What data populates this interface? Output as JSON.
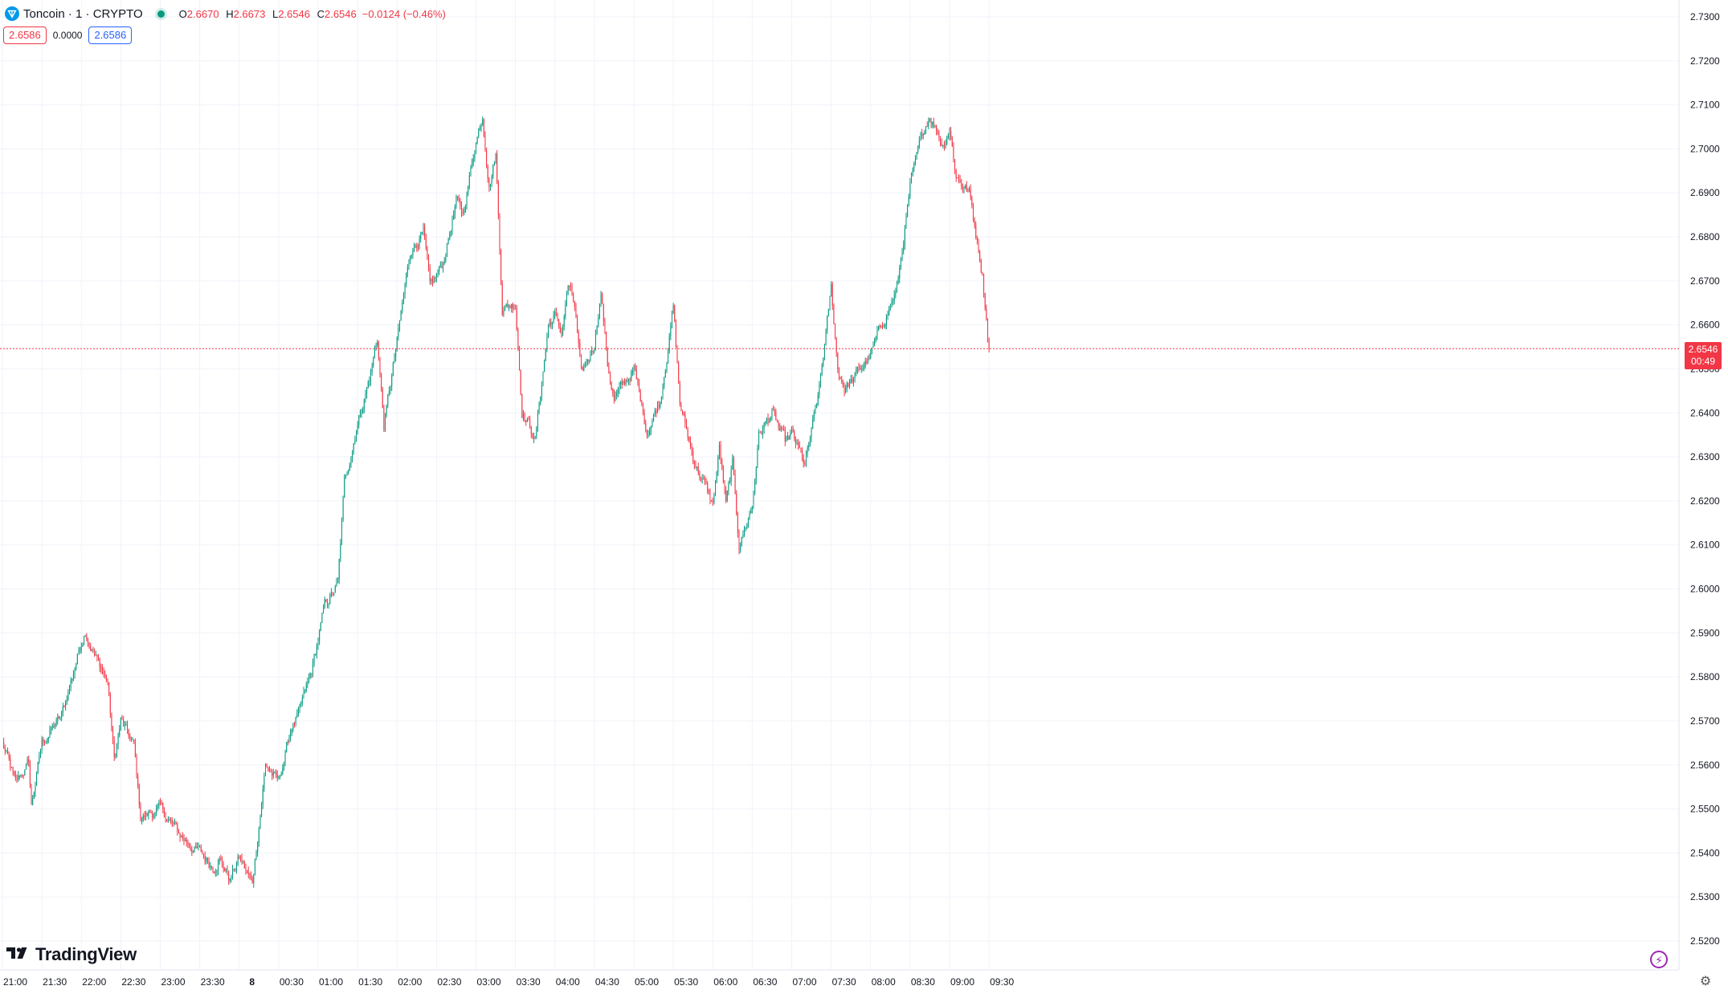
{
  "legend": {
    "symbol": "Toncoin · 1 · CRYPTO",
    "open_key": "O",
    "open": "2.6670",
    "high_key": "H",
    "high": "2.6673",
    "low_key": "L",
    "low": "2.6546",
    "close_key": "C",
    "close": "2.6546",
    "change": "−0.0124 (−0.46%)"
  },
  "quotes": {
    "bid": "2.6586",
    "spread": "0.0000",
    "ask": "2.6586"
  },
  "brand": "TradingView",
  "last_price": {
    "price": "2.6546",
    "countdown": "00:49"
  },
  "colors": {
    "up": "#089981",
    "down": "#f23645",
    "grid": "#f0f3fa",
    "text": "#131722",
    "price_line": "#f23645"
  },
  "icons": {
    "logo": "toncoin-logo-icon",
    "bolt": "lightning-icon",
    "settings": "gear-icon"
  },
  "chart_data": {
    "type": "candlestick",
    "title": "",
    "series": [
      {
        "name": ""
      }
    ],
    "x_ticks": [
      "21:00",
      "21:30",
      "22:00",
      "22:30",
      "23:00",
      "23:30",
      "8",
      "00:30",
      "01:00",
      "01:30",
      "02:00",
      "02:30",
      "03:00",
      "03:30",
      "04:00",
      "04:30",
      "05:00",
      "05:30",
      "06:00",
      "06:30",
      "07:00",
      "07:30",
      "08:00",
      "08:30",
      "09:00",
      "09:30"
    ],
    "y_ticks": [
      "2.7300",
      "2.7200",
      "2.7100",
      "2.7000",
      "2.6900",
      "2.6800",
      "2.6700",
      "2.6600",
      "2.6500",
      "2.6400",
      "2.6300",
      "2.6200",
      "2.6100",
      "2.6000",
      "2.5900",
      "2.5800",
      "2.5700",
      "2.5600",
      "2.5500",
      "2.5400",
      "2.5300",
      "2.5200"
    ],
    "ylim": [
      2.5175,
      2.7322
    ],
    "grid": true,
    "price_path": [
      [
        "21:00",
        2.565
      ],
      [
        "21:10",
        2.5555
      ],
      [
        "21:20",
        2.5605
      ],
      [
        "21:22",
        2.5505
      ],
      [
        "21:30",
        2.565
      ],
      [
        "21:45",
        2.571
      ],
      [
        "22:00",
        2.588
      ],
      [
        "22:03",
        2.591
      ],
      [
        "22:10",
        2.585
      ],
      [
        "22:20",
        2.579
      ],
      [
        "22:25",
        2.561
      ],
      [
        "22:30",
        2.57
      ],
      [
        "22:40",
        2.564
      ],
      [
        "22:45",
        2.548
      ],
      [
        "23:00",
        2.55
      ],
      [
        "23:15",
        2.544
      ],
      [
        "23:30",
        2.54
      ],
      [
        "23:40",
        2.537
      ],
      [
        "23:45",
        2.539
      ],
      [
        "23:53",
        2.534
      ],
      [
        "00:00",
        2.539
      ],
      [
        "00:10",
        2.533
      ],
      [
        "00:20",
        2.56
      ],
      [
        "00:30",
        2.556
      ],
      [
        "00:40",
        2.569
      ],
      [
        "00:45",
        2.571
      ],
      [
        "00:55",
        2.581
      ],
      [
        "01:05",
        2.596
      ],
      [
        "01:15",
        2.601
      ],
      [
        "01:20",
        2.624
      ],
      [
        "01:30",
        2.638
      ],
      [
        "01:40",
        2.649
      ],
      [
        "01:45",
        2.657
      ],
      [
        "01:50",
        2.637
      ],
      [
        "02:00",
        2.656
      ],
      [
        "02:10",
        2.677
      ],
      [
        "02:20",
        2.681
      ],
      [
        "02:25",
        2.668
      ],
      [
        "02:35",
        2.674
      ],
      [
        "02:45",
        2.688
      ],
      [
        "02:50",
        2.685
      ],
      [
        "03:00",
        2.702
      ],
      [
        "03:05",
        2.708
      ],
      [
        "03:10",
        2.692
      ],
      [
        "03:15",
        2.699
      ],
      [
        "03:20",
        2.664
      ],
      [
        "03:30",
        2.665
      ],
      [
        "03:35",
        2.641
      ],
      [
        "03:45",
        2.634
      ],
      [
        "03:55",
        2.66
      ],
      [
        "04:00",
        2.662
      ],
      [
        "04:05",
        2.658
      ],
      [
        "04:10",
        2.669
      ],
      [
        "04:15",
        2.664
      ],
      [
        "04:20",
        2.648
      ],
      [
        "04:30",
        2.656
      ],
      [
        "04:35",
        2.668
      ],
      [
        "04:40",
        2.651
      ],
      [
        "04:45",
        2.643
      ],
      [
        "05:00",
        2.65
      ],
      [
        "05:10",
        2.636
      ],
      [
        "05:20",
        2.643
      ],
      [
        "05:30",
        2.664
      ],
      [
        "05:35",
        2.642
      ],
      [
        "05:45",
        2.63
      ],
      [
        "06:00",
        2.619
      ],
      [
        "06:05",
        2.632
      ],
      [
        "06:10",
        2.619
      ],
      [
        "06:15",
        2.628
      ],
      [
        "06:20",
        2.61
      ],
      [
        "06:30",
        2.619
      ],
      [
        "06:35",
        2.635
      ],
      [
        "06:45",
        2.64
      ],
      [
        "06:55",
        2.633
      ],
      [
        "07:00",
        2.635
      ],
      [
        "07:10",
        2.628
      ],
      [
        "07:20",
        2.643
      ],
      [
        "07:30",
        2.668
      ],
      [
        "07:35",
        2.65
      ],
      [
        "07:40",
        2.646
      ],
      [
        "07:45",
        2.647
      ],
      [
        "07:50",
        2.649
      ],
      [
        "08:00",
        2.653
      ],
      [
        "08:10",
        2.661
      ],
      [
        "08:20",
        2.668
      ],
      [
        "08:30",
        2.691
      ],
      [
        "08:40",
        2.704
      ],
      [
        "08:45",
        2.708
      ],
      [
        "08:55",
        2.701
      ],
      [
        "09:00",
        2.705
      ],
      [
        "09:05",
        2.694
      ],
      [
        "09:15",
        2.69
      ],
      [
        "09:25",
        2.672
      ],
      [
        "09:30",
        2.6546
      ]
    ]
  }
}
